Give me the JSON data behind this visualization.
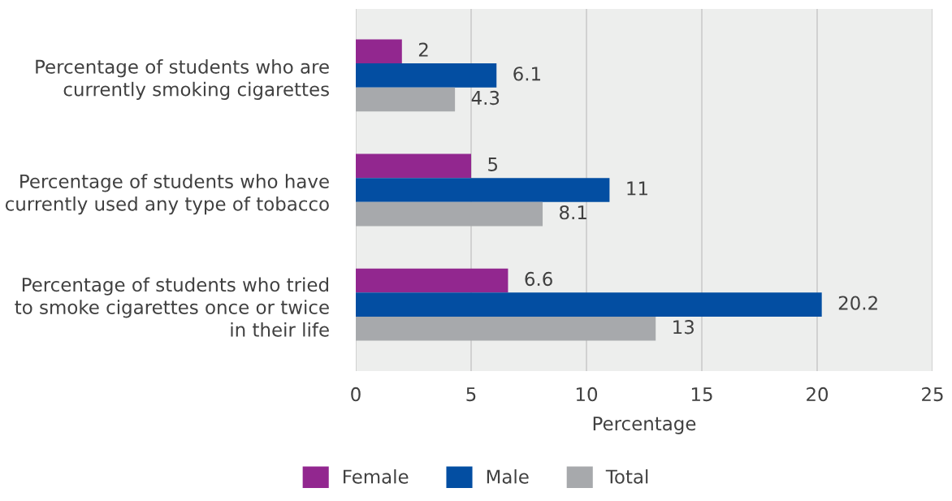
{
  "chart_data": {
    "type": "bar",
    "orientation": "horizontal",
    "categories": [
      "Percentage of students who are\ncurrently smoking cigarettes",
      "Percentage of students who have\ncurrently used any type of tobacco",
      "Percentage of students who tried\nto smoke cigarettes once or twice\nin their life"
    ],
    "series": [
      {
        "name": "Female",
        "color": "#92278f",
        "values": [
          2,
          5,
          6.6
        ]
      },
      {
        "name": "Male",
        "color": "#034ea2",
        "values": [
          6.1,
          11,
          20.2
        ]
      },
      {
        "name": "Total",
        "color": "#a7a9ac",
        "values": [
          4.3,
          8.1,
          13
        ]
      }
    ],
    "xlabel": "Percentage",
    "xlim": [
      0,
      25
    ],
    "xticks": [
      0,
      5,
      10,
      15,
      20,
      25
    ],
    "grid": "x",
    "legend": "bottom",
    "data_labels": true
  }
}
